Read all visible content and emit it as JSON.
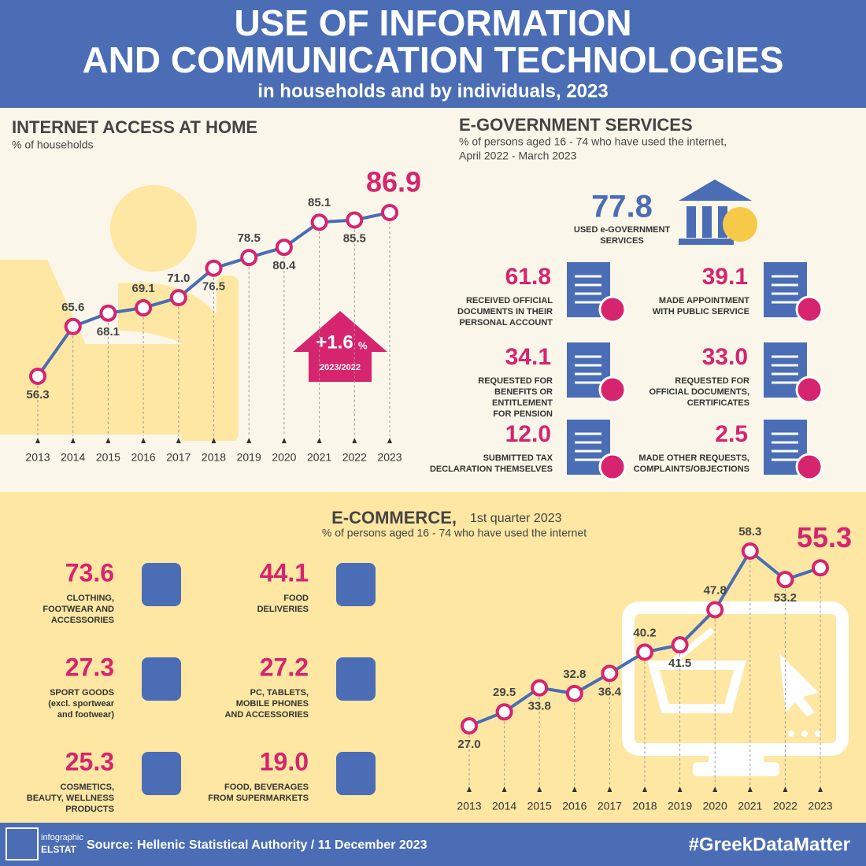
{
  "header": {
    "title_lines": [
      "USE OF INFORMATION",
      "AND COMMUNICATION TECHNOLOGIES"
    ],
    "subtitle": "in households and by individuals, 2023"
  },
  "chart_data": [
    {
      "type": "line",
      "title": "INTERNET ACCESS AT HOME",
      "subtitle": "% of households",
      "categories": [
        "2013",
        "2014",
        "2015",
        "2016",
        "2017",
        "2018",
        "2019",
        "2020",
        "2021",
        "2022",
        "2023"
      ],
      "values": [
        56.3,
        65.6,
        68.1,
        69.1,
        71.0,
        76.5,
        78.5,
        80.4,
        85.1,
        85.5,
        86.9
      ],
      "value_labels": [
        "56.3",
        "65.6",
        "68.1",
        "69.1",
        "71.0",
        "76.5",
        "78.5",
        "80.4",
        "85.1",
        "85.5",
        "86.9"
      ],
      "color": "#4a6db5",
      "marker_color": "#d6246e",
      "annotation": {
        "change": "+1.6",
        "unit": "%",
        "period": "2023/2022"
      }
    },
    {
      "type": "line",
      "title": "E-COMMERCE,",
      "title_note": "1st quarter 2023",
      "subtitle": "% of persons aged 16 - 74 who have used the internet",
      "categories": [
        "2013",
        "2014",
        "2015",
        "2016",
        "2017",
        "2018",
        "2019",
        "2020",
        "2021",
        "2022",
        "2023"
      ],
      "values": [
        27.0,
        29.5,
        33.8,
        32.8,
        36.4,
        40.2,
        41.5,
        47.8,
        58.3,
        53.2,
        55.3
      ],
      "value_labels": [
        "27.0",
        "29.5",
        "33.8",
        "32.8",
        "36.4",
        "40.2",
        "41.5",
        "47.8",
        "58.3",
        "53.2",
        "55.3"
      ],
      "color": "#4a6db5",
      "marker_color": "#d6246e"
    }
  ],
  "egov": {
    "title": "E-GOVERNMENT SERVICES",
    "subtitle_lines": [
      "% of persons aged 16 - 74 who have used the internet,",
      "April 2022 - March 2023"
    ],
    "main": {
      "value": "77.8",
      "label_lines": [
        "USED e-GOVERNMENT",
        "SERVICES"
      ]
    },
    "items": [
      {
        "value": "61.8",
        "label_lines": [
          "RECEIVED OFFICIAL",
          "DOCUMENTS IN THEIR",
          "PERSONAL ACCOUNT"
        ]
      },
      {
        "value": "39.1",
        "label_lines": [
          "MADE APPOINTMENT",
          "WITH PUBLIC SERVICE"
        ]
      },
      {
        "value": "34.1",
        "label_lines": [
          "REQUESTED FOR",
          "BENEFITS OR",
          "ENTITLEMENT",
          "FOR PENSION"
        ]
      },
      {
        "value": "33.0",
        "label_lines": [
          "REQUESTED FOR",
          "OFFICIAL DOCUMENTS,",
          "CERTIFICATES"
        ]
      },
      {
        "value": "12.0",
        "label_lines": [
          "SUBMITTED TAX",
          "DECLARATION THEMSELVES"
        ]
      },
      {
        "value": "2.5",
        "label_lines": [
          "MADE OTHER REQUESTS,",
          "COMPLAINTS/OBJECTIONS"
        ]
      }
    ]
  },
  "ecommerce_items": [
    {
      "value": "73.6",
      "label_lines": [
        "CLOTHING,",
        "FOOTWEAR AND",
        "ACCESSORIES"
      ]
    },
    {
      "value": "44.1",
      "label_lines": [
        "FOOD",
        "DELIVERIES"
      ]
    },
    {
      "value": "27.3",
      "label_lines": [
        "SPORT GOODS",
        "(excl. sportwear",
        "and footwear)"
      ]
    },
    {
      "value": "27.2",
      "label_lines": [
        "PC, TABLETS,",
        "MOBILE PHONES",
        "AND ACCESSORIES"
      ]
    },
    {
      "value": "25.3",
      "label_lines": [
        "COSMETICS,",
        "BEAUTY, WELLNESS",
        "PRODUCTS"
      ]
    },
    {
      "value": "19.0",
      "label_lines": [
        "FOOD, BEVERAGES",
        "FROM SUPERMARKETS"
      ]
    }
  ],
  "footer": {
    "logo_top": "infographic",
    "logo_bottom": "ELSTAT",
    "source": "Source: Hellenic Statistical Authority / 11 December 2023",
    "hashtag": "#GreekDataMatter"
  }
}
